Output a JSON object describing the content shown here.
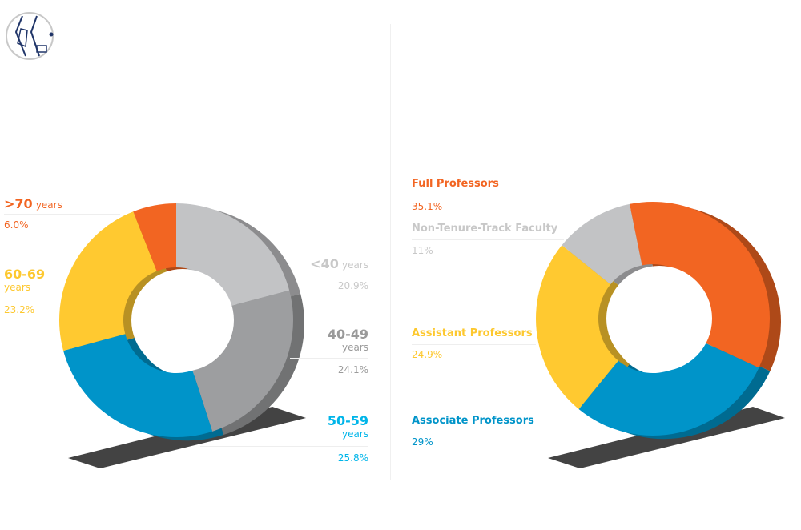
{
  "chart_data": [
    {
      "type": "pie",
      "donut": true,
      "categories": [
        ">70 years",
        "60-69 years",
        "50-59 years",
        "40-49 years",
        "<40 years"
      ],
      "labels": [
        {
          "main": ">70",
          "sub": "years",
          "pct": "6.0%"
        },
        {
          "main": "60-69",
          "sub": "years",
          "pct": "23.2%"
        },
        {
          "main": "50-59",
          "sub": "years",
          "pct": "25.8%"
        },
        {
          "main": "40-49",
          "sub": "years",
          "pct": "24.1%"
        },
        {
          "main": "<40",
          "sub": "years",
          "pct": "20.9%"
        }
      ],
      "values": [
        6.0,
        23.2,
        25.8,
        24.1,
        20.9
      ],
      "colors": [
        "#f26522",
        "#ffc930",
        "#0094c9",
        "#9d9e a0",
        "#c2c3c5"
      ]
    },
    {
      "type": "pie",
      "donut": true,
      "categories": [
        "Full Professors",
        "Non-Tenure-Track Faculty",
        "Assistant Professors",
        "Associate Professors"
      ],
      "labels": [
        {
          "main": "Full Professors",
          "pct": "35.1%"
        },
        {
          "main": "Non-Tenure-Track Faculty",
          "pct": "11%"
        },
        {
          "main": "Assistant Professors",
          "pct": "24.9%"
        },
        {
          "main": "Associate Professors",
          "pct": "29%"
        }
      ],
      "values": [
        35.1,
        11,
        24.9,
        29
      ],
      "colors": [
        "#f26522",
        "#c2c3c5",
        "#ffc930",
        "#0094c9"
      ]
    }
  ],
  "label_colors": {
    "orange": "#f26522",
    "yellow": "#fdc82f",
    "blue": "#00b5e9",
    "gray": "#9a9a9a",
    "lightgray": "#c8c8c8"
  }
}
